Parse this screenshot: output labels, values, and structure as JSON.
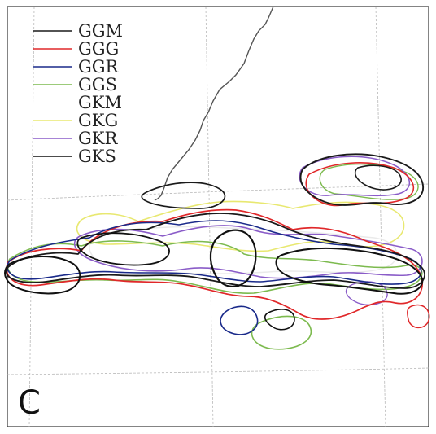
{
  "panel_label": "C",
  "legend": [
    {
      "label": "GGM",
      "color": "#1a1a1a"
    },
    {
      "label": "GGG",
      "color": "#e0282a"
    },
    {
      "label": "GGR",
      "color": "#1a2a8a"
    },
    {
      "label": "GGS",
      "color": "#7cba4e"
    },
    {
      "label": "GKM",
      "color": "#ffffff"
    },
    {
      "label": "GKG",
      "color": "#e8e870"
    },
    {
      "label": "GKR",
      "color": "#8a5cc8"
    },
    {
      "label": "GKS",
      "color": "#111111"
    }
  ],
  "colors": {
    "background": "#ffffff",
    "grid": "#b8b8b8",
    "coastline": "#555555",
    "frame": "#333333"
  }
}
